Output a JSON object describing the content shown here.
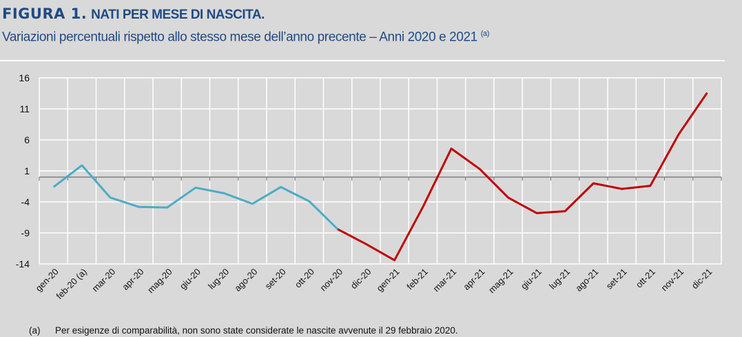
{
  "header": {
    "figure_label": "FIGURA 1.",
    "title": "NATI PER MESE DI NASCITA.",
    "subtitle": "Variazioni percentuali rispetto allo stesso mese dell’anno precente – Anni 2020 e 2021",
    "subtitle_note": "(a)"
  },
  "footnote": {
    "label": "(a)",
    "text": "Per esigenze di comparabilità, non sono state considerate le nascite avvenute il 29 febbraio 2020."
  },
  "chart_data": {
    "type": "line",
    "title": "NATI PER MESE DI NASCITA.",
    "xlabel": "",
    "ylabel": "",
    "ylim": [
      -14,
      16
    ],
    "yticks": [
      16,
      11,
      6,
      1,
      -4,
      -9,
      -14
    ],
    "grid": true,
    "categories": [
      "gen-20",
      "feb-20 (a)",
      "mar-20",
      "apr-20",
      "mag-20",
      "giu-20",
      "lug-20",
      "ago-20",
      "set-20",
      "ott-20",
      "nov-20",
      "dic-20",
      "gen-21",
      "feb-21",
      "mar-21",
      "apr-21",
      "mag-21",
      "giu-21",
      "lug-21",
      "ago-21",
      "set-21",
      "ott-21",
      "nov-21",
      "dic-21"
    ],
    "values": [
      -1.6,
      1.9,
      -3.3,
      -4.8,
      -4.9,
      -1.7,
      -2.6,
      -4.3,
      -1.6,
      -3.9,
      -8.4,
      -10.8,
      -13.4,
      -4.8,
      4.6,
      1.3,
      -3.3,
      -5.8,
      -5.5,
      -1.0,
      -1.9,
      -1.4,
      6.9,
      13.6
    ],
    "segments": [
      {
        "name": "gen-20 – nov-20",
        "from": 0,
        "to": 10,
        "color": "#4bacc6"
      },
      {
        "name": "nov-20 – dic-21",
        "from": 10,
        "to": 23,
        "color": "#c00000"
      }
    ]
  }
}
